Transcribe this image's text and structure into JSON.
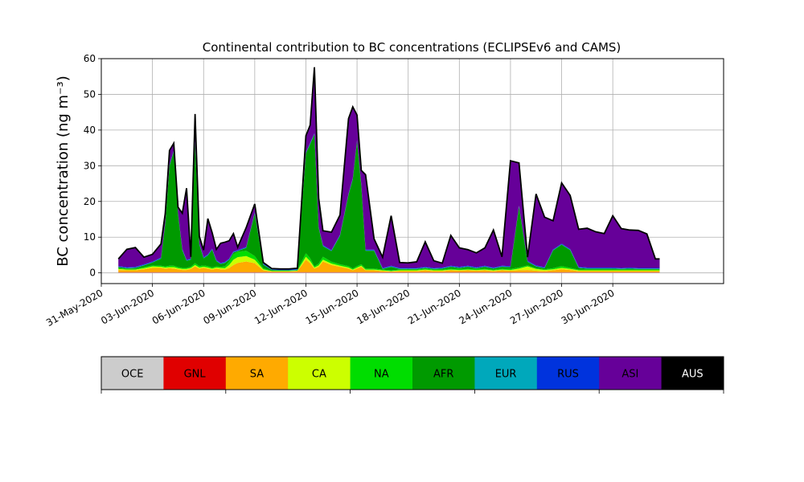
{
  "chart_data": {
    "type": "area",
    "title": "Continental contribution to BC concentrations (ECLIPSEv6 and CAMS)",
    "ylabel": "BC concentration (ng m⁻³)",
    "ylim": [
      -3,
      60
    ],
    "xlim": [
      "2020-05-31T00:00",
      "2020-07-06T12:00"
    ],
    "grid": true,
    "y_ticks": [
      0,
      10,
      20,
      30,
      40,
      50,
      60
    ],
    "x_ticks": [
      "31-May-2020",
      "03-Jun-2020",
      "06-Jun-2020",
      "09-Jun-2020",
      "12-Jun-2020",
      "15-Jun-2020",
      "18-Jun-2020",
      "21-Jun-2020",
      "24-Jun-2020",
      "27-Jun-2020",
      "30-Jun-2020"
    ],
    "x_tick_dates": [
      "2020-05-31",
      "2020-06-03",
      "2020-06-06",
      "2020-06-09",
      "2020-06-12",
      "2020-06-15",
      "2020-06-18",
      "2020-06-21",
      "2020-06-24",
      "2020-06-27",
      "2020-06-30"
    ],
    "x": [
      "2020-06-01T00:00",
      "2020-06-01T12:00",
      "2020-06-02T00:00",
      "2020-06-02T12:00",
      "2020-06-03T00:00",
      "2020-06-03T12:00",
      "2020-06-03T18:00",
      "2020-06-04T00:00",
      "2020-06-04T06:00",
      "2020-06-04T12:00",
      "2020-06-04T18:00",
      "2020-06-05T00:00",
      "2020-06-05T06:00",
      "2020-06-05T12:00",
      "2020-06-05T18:00",
      "2020-06-06T00:00",
      "2020-06-06T06:00",
      "2020-06-06T12:00",
      "2020-06-06T18:00",
      "2020-06-07T00:00",
      "2020-06-07T06:00",
      "2020-06-07T12:00",
      "2020-06-07T18:00",
      "2020-06-08T00:00",
      "2020-06-08T12:00",
      "2020-06-09T00:00",
      "2020-06-09T12:00",
      "2020-06-10T00:00",
      "2020-06-10T12:00",
      "2020-06-11T00:00",
      "2020-06-11T12:00",
      "2020-06-12T00:00",
      "2020-06-12T06:00",
      "2020-06-12T12:00",
      "2020-06-12T18:00",
      "2020-06-13T00:00",
      "2020-06-13T12:00",
      "2020-06-14T00:00",
      "2020-06-14T12:00",
      "2020-06-14T18:00",
      "2020-06-15T00:00",
      "2020-06-15T06:00",
      "2020-06-15T12:00",
      "2020-06-16T00:00",
      "2020-06-16T12:00",
      "2020-06-17T00:00",
      "2020-06-17T12:00",
      "2020-06-18T00:00",
      "2020-06-18T12:00",
      "2020-06-19T00:00",
      "2020-06-19T12:00",
      "2020-06-20T00:00",
      "2020-06-20T12:00",
      "2020-06-21T00:00",
      "2020-06-21T12:00",
      "2020-06-22T00:00",
      "2020-06-22T12:00",
      "2020-06-23T00:00",
      "2020-06-23T12:00",
      "2020-06-24T00:00",
      "2020-06-24T12:00",
      "2020-06-25T00:00",
      "2020-06-25T12:00",
      "2020-06-26T00:00",
      "2020-06-26T12:00",
      "2020-06-27T00:00",
      "2020-06-27T12:00",
      "2020-06-28T00:00",
      "2020-06-28T12:00",
      "2020-06-29T00:00",
      "2020-06-29T12:00",
      "2020-06-30T00:00",
      "2020-06-30T12:00",
      "2020-07-01T00:00",
      "2020-07-01T12:00",
      "2020-07-02T00:00",
      "2020-07-02T12:00",
      "2020-07-02T18:00"
    ],
    "series": [
      {
        "name": "OCE",
        "color": "#cccccc",
        "values": [
          0.1,
          0.1,
          0.1,
          0.1,
          0.1,
          0.1,
          0.1,
          0.1,
          0.1,
          0.1,
          0.1,
          0.1,
          0.1,
          0.1,
          0.1,
          0.1,
          0.1,
          0.1,
          0.1,
          0.1,
          0.1,
          0.1,
          0.1,
          0.1,
          0.1,
          0.1,
          0.1,
          0.1,
          0.1,
          0.1,
          0.1,
          0.1,
          0.1,
          0.1,
          0.1,
          0.1,
          0.1,
          0.1,
          0.1,
          0.1,
          0.1,
          0.1,
          0.1,
          0.1,
          0.1,
          0.1,
          0.1,
          0.1,
          0.1,
          0.1,
          0.1,
          0.1,
          0.1,
          0.1,
          0.1,
          0.1,
          0.1,
          0.1,
          0.1,
          0.1,
          0.1,
          0.1,
          0.1,
          0.1,
          0.1,
          0.1,
          0.1,
          0.1,
          0.1,
          0.1,
          0.1,
          0.1,
          0.1,
          0.1,
          0.1,
          0.1,
          0.1,
          0.1
        ]
      },
      {
        "name": "GNL",
        "color": "#e00000",
        "values": [
          0.1,
          0.1,
          0.1,
          0.1,
          0.1,
          0.1,
          0.1,
          0.1,
          0.1,
          0.1,
          0.1,
          0.1,
          0.1,
          0.1,
          0.1,
          0.1,
          0.1,
          0.1,
          0.1,
          0.1,
          0.1,
          0.1,
          0.1,
          0.1,
          0.1,
          0.1,
          0.1,
          0.1,
          0.1,
          0.1,
          0.1,
          0.1,
          0.1,
          0.1,
          0.1,
          0.1,
          0.1,
          0.1,
          0.1,
          0.1,
          0.1,
          0.1,
          0.1,
          0.1,
          0.1,
          0.1,
          0.1,
          0.1,
          0.1,
          0.1,
          0.1,
          0.1,
          0.1,
          0.1,
          0.1,
          0.1,
          0.1,
          0.1,
          0.1,
          0.1,
          0.1,
          0.1,
          0.1,
          0.1,
          0.1,
          0.1,
          0.1,
          0.1,
          0.1,
          0.1,
          0.1,
          0.1,
          0.1,
          0.1,
          0.1,
          0.1,
          0.1,
          0.1
        ]
      },
      {
        "name": "SA",
        "color": "#ffaa00",
        "values": [
          0.6,
          0.5,
          0.5,
          0.8,
          1.2,
          1.2,
          1.0,
          1.1,
          1.0,
          0.8,
          0.6,
          0.6,
          0.9,
          1.6,
          1.0,
          1.2,
          1.0,
          0.7,
          1.0,
          0.8,
          0.7,
          1.2,
          2.0,
          2.6,
          3.0,
          2.5,
          0.5,
          0.2,
          0.2,
          0.2,
          0.3,
          3.5,
          2.5,
          1.0,
          1.5,
          3.0,
          2.0,
          1.5,
          1.0,
          0.5,
          1.0,
          1.5,
          0.5,
          0.5,
          0.3,
          0.2,
          0.3,
          0.3,
          0.3,
          0.5,
          0.3,
          0.3,
          0.5,
          0.4,
          0.5,
          0.4,
          0.5,
          0.3,
          0.5,
          0.4,
          0.5,
          0.6,
          0.4,
          0.3,
          0.5,
          0.8,
          0.6,
          0.3,
          0.3,
          0.3,
          0.3,
          0.3,
          0.3,
          0.3,
          0.3,
          0.3,
          0.3,
          0.3
        ]
      },
      {
        "name": "CA",
        "color": "#ccff00",
        "values": [
          0.3,
          0.2,
          0.2,
          0.3,
          0.4,
          0.3,
          0.3,
          0.3,
          0.4,
          0.3,
          0.3,
          0.3,
          0.3,
          0.4,
          0.3,
          0.3,
          0.3,
          0.3,
          0.3,
          0.4,
          0.4,
          0.8,
          1.5,
          1.6,
          1.5,
          1.0,
          0.3,
          0.1,
          0.1,
          0.1,
          0.1,
          0.8,
          0.6,
          0.3,
          0.4,
          0.5,
          0.4,
          0.3,
          0.3,
          0.2,
          0.3,
          0.3,
          0.2,
          0.2,
          0.2,
          0.1,
          0.2,
          0.2,
          0.2,
          0.2,
          0.2,
          0.2,
          0.2,
          0.2,
          0.2,
          0.2,
          0.2,
          0.2,
          0.2,
          0.2,
          0.5,
          1.0,
          0.5,
          0.3,
          0.3,
          0.4,
          0.3,
          0.2,
          0.2,
          0.2,
          0.2,
          0.2,
          0.2,
          0.2,
          0.2,
          0.2,
          0.2,
          0.2
        ]
      },
      {
        "name": "NA",
        "color": "#00dd00",
        "values": [
          0.2,
          0.2,
          0.2,
          0.3,
          0.3,
          0.3,
          0.3,
          0.4,
          0.4,
          0.3,
          0.3,
          0.3,
          0.3,
          0.5,
          0.4,
          0.4,
          0.4,
          0.3,
          0.3,
          0.3,
          0.5,
          1.0,
          1.5,
          1.5,
          1.5,
          1.0,
          0.3,
          0.1,
          0.1,
          0.1,
          0.1,
          1.0,
          0.8,
          0.3,
          0.5,
          0.8,
          0.5,
          0.4,
          0.4,
          0.3,
          0.4,
          0.4,
          0.3,
          0.3,
          0.2,
          0.2,
          0.2,
          0.2,
          0.2,
          0.3,
          0.2,
          0.2,
          0.3,
          0.3,
          0.3,
          0.3,
          0.3,
          0.2,
          0.3,
          0.3,
          0.3,
          0.3,
          0.2,
          0.2,
          0.3,
          0.5,
          0.3,
          0.2,
          0.2,
          0.2,
          0.2,
          0.2,
          0.2,
          0.2,
          0.2,
          0.2,
          0.2,
          0.2
        ]
      },
      {
        "name": "AFR",
        "color": "#009a00",
        "values": [
          0.3,
          0.2,
          0.3,
          0.5,
          0.8,
          2.0,
          12.0,
          28.0,
          32.0,
          15.0,
          5.0,
          2.0,
          2.0,
          34.0,
          6.0,
          2.0,
          3.0,
          5.0,
          1.5,
          0.8,
          1.0,
          0.5,
          0.5,
          0.2,
          0.8,
          12.0,
          1.0,
          0.2,
          0.1,
          0.1,
          0.1,
          28.0,
          32.0,
          37.0,
          10.0,
          3.0,
          3.0,
          8.0,
          20.0,
          25.0,
          35.0,
          22.0,
          5.0,
          5.0,
          0.2,
          1.0,
          0.2,
          0.2,
          0.2,
          0.2,
          0.2,
          0.3,
          0.5,
          0.3,
          0.5,
          0.2,
          0.5,
          0.3,
          0.5,
          0.5,
          17.0,
          1.0,
          0.5,
          0.3,
          5.0,
          6.0,
          5.0,
          0.5,
          0.3,
          0.3,
          0.3,
          0.3,
          0.2,
          0.3,
          0.2,
          0.2,
          0.2,
          0.2
        ]
      },
      {
        "name": "EUR",
        "color": "#00a8bb",
        "values": [
          0.1,
          0.1,
          0.1,
          0.1,
          0.1,
          0.1,
          0.1,
          0.1,
          0.1,
          0.1,
          0.1,
          0.1,
          0.1,
          0.1,
          0.1,
          0.1,
          0.1,
          0.1,
          0.1,
          0.1,
          0.1,
          0.1,
          0.1,
          0.1,
          0.1,
          0.1,
          0.1,
          0.1,
          0.1,
          0.1,
          0.1,
          0.1,
          0.1,
          0.1,
          0.1,
          0.1,
          0.1,
          0.1,
          0.1,
          0.1,
          0.1,
          0.1,
          0.1,
          0.1,
          0.1,
          0.1,
          0.1,
          0.1,
          0.1,
          0.1,
          0.1,
          0.1,
          0.1,
          0.1,
          0.1,
          0.1,
          0.1,
          0.1,
          0.1,
          0.1,
          0.1,
          0.1,
          0.1,
          0.1,
          0.1,
          0.1,
          0.1,
          0.1,
          0.1,
          0.1,
          0.1,
          0.1,
          0.1,
          0.1,
          0.1,
          0.1,
          0.1,
          0.1
        ]
      },
      {
        "name": "RUS",
        "color": "#0033dd",
        "values": [
          0.2,
          0.2,
          0.2,
          0.2,
          0.2,
          0.2,
          0.2,
          0.2,
          0.2,
          0.2,
          0.2,
          0.2,
          0.2,
          0.2,
          0.2,
          0.2,
          0.2,
          0.2,
          0.2,
          0.2,
          0.2,
          0.2,
          0.2,
          0.2,
          0.2,
          0.2,
          0.2,
          0.2,
          0.2,
          0.2,
          0.2,
          0.2,
          0.2,
          0.2,
          0.2,
          0.2,
          0.2,
          0.2,
          0.2,
          0.2,
          0.2,
          0.2,
          0.2,
          0.2,
          0.2,
          0.2,
          0.2,
          0.2,
          0.2,
          0.2,
          0.2,
          0.2,
          0.2,
          0.2,
          0.2,
          0.2,
          0.2,
          0.2,
          0.2,
          0.2,
          0.2,
          0.2,
          0.2,
          0.2,
          0.2,
          0.2,
          0.2,
          0.2,
          0.2,
          0.2,
          0.2,
          0.2,
          0.2,
          0.2,
          0.2,
          0.2,
          0.2,
          0.2
        ]
      },
      {
        "name": "ASI",
        "color": "#660099",
        "values": [
          2.0,
          5.0,
          5.4,
          2.0,
          2.0,
          3.8,
          2.5,
          4.0,
          2.0,
          1.5,
          10.0,
          20.0,
          0.5,
          7.5,
          2.0,
          2.0,
          10.0,
          4.5,
          3.0,
          5.5,
          5.5,
          5.0,
          5.0,
          0.8,
          5.4,
          2.3,
          0.3,
          0.1,
          0.1,
          0.1,
          0.2,
          4.6,
          5.0,
          18.5,
          8.0,
          4.0,
          5.0,
          5.5,
          21.0,
          20.0,
          7.0,
          4.0,
          21.0,
          3.0,
          3.0,
          14.0,
          1.5,
          1.4,
          1.7,
          7.0,
          2.0,
          1.2,
          8.5,
          5.3,
          4.5,
          4.0,
          5.0,
          10.5,
          2.5,
          29.5,
          12.0,
          1.0,
          20.0,
          14.0,
          8.0,
          17.0,
          15.0,
          10.5,
          11.0,
          10.0,
          9.5,
          14.5,
          11.0,
          10.5,
          10.5,
          9.5,
          2.5,
          2.5
        ]
      }
    ],
    "colorbar": {
      "labels": [
        "OCE",
        "GNL",
        "SA",
        "CA",
        "NA",
        "AFR",
        "EUR",
        "RUS",
        "ASI",
        "AUS"
      ],
      "colors": [
        "#cccccc",
        "#e00000",
        "#ffaa00",
        "#ccff00",
        "#00dd00",
        "#009a00",
        "#00a8bb",
        "#0033dd",
        "#660099",
        "#000000"
      ],
      "label_colors": [
        "#000000",
        "#000000",
        "#000000",
        "#000000",
        "#000000",
        "#000000",
        "#000000",
        "#000000",
        "#000000",
        "#ffffff"
      ]
    }
  }
}
